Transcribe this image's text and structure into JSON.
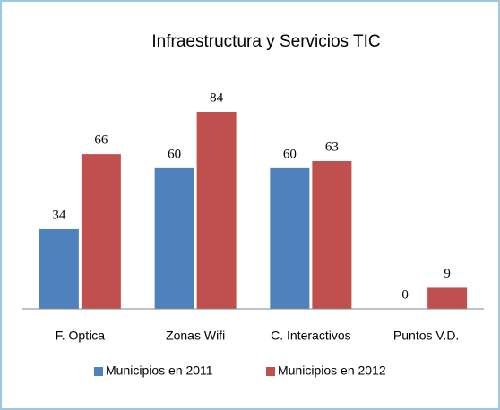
{
  "chart_data": {
    "type": "bar",
    "title": "Infraestructura  y Servicios TIC",
    "categories": [
      "F. Óptica",
      "Zonas Wifi",
      "C. Interactivos",
      "Puntos V.D."
    ],
    "series": [
      {
        "name": "Municipios en 2011",
        "color": "#4f81bd",
        "values": [
          34,
          60,
          60,
          0
        ]
      },
      {
        "name": "Municipios en 2012",
        "color": "#c0504d",
        "values": [
          66,
          84,
          63,
          9
        ]
      }
    ],
    "legend": "bottom"
  }
}
